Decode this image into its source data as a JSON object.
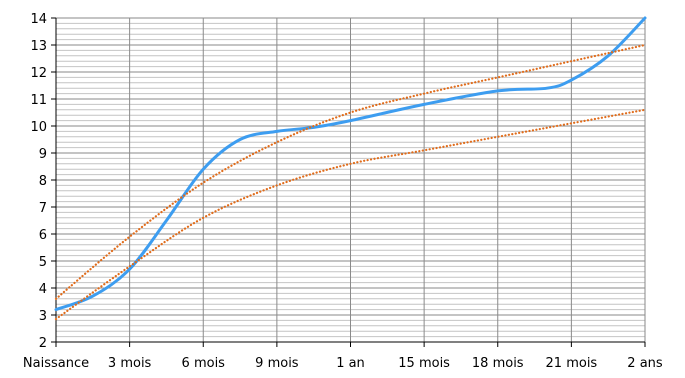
{
  "chart_data": {
    "type": "line",
    "title": "",
    "xlabel": "",
    "ylabel": "",
    "categories": [
      "Naissance",
      "3 mois",
      "6 mois",
      "9 mois",
      "1 an",
      "15 mois",
      "18 mois",
      "21 mois",
      "2 ans"
    ],
    "x_months": [
      0,
      3,
      6,
      9,
      12,
      15,
      18,
      21,
      24
    ],
    "xlim": [
      0,
      24
    ],
    "ylim": [
      2,
      14
    ],
    "y_ticks": [
      2,
      3,
      4,
      5,
      6,
      7,
      8,
      9,
      10,
      11,
      12,
      13,
      14
    ],
    "grid": true,
    "minor_y_step": 0.2,
    "series": [
      {
        "style": "solid",
        "color": "#3d9df0",
        "points": [
          [
            0,
            3.2
          ],
          [
            1.5,
            3.7
          ],
          [
            3,
            4.7
          ],
          [
            4.5,
            6.5
          ],
          [
            6,
            8.4
          ],
          [
            7.5,
            9.5
          ],
          [
            9,
            9.8
          ],
          [
            10.5,
            9.95
          ],
          [
            12,
            10.2
          ],
          [
            15,
            10.8
          ],
          [
            18,
            11.3
          ],
          [
            20,
            11.4
          ],
          [
            21,
            11.7
          ],
          [
            22.5,
            12.6
          ],
          [
            24,
            14.0
          ]
        ]
      },
      {
        "style": "dotted",
        "color": "#e06c1b",
        "points": [
          [
            0,
            3.6
          ],
          [
            3,
            5.9
          ],
          [
            6,
            7.9
          ],
          [
            9,
            9.4
          ],
          [
            12,
            10.5
          ],
          [
            15,
            11.2
          ],
          [
            18,
            11.8
          ],
          [
            21,
            12.4
          ],
          [
            24,
            13.0
          ]
        ]
      },
      {
        "style": "dotted",
        "color": "#e06c1b",
        "points": [
          [
            0,
            2.85
          ],
          [
            3,
            4.8
          ],
          [
            6,
            6.6
          ],
          [
            9,
            7.8
          ],
          [
            12,
            8.6
          ],
          [
            15,
            9.1
          ],
          [
            18,
            9.6
          ],
          [
            21,
            10.1
          ],
          [
            24,
            10.6
          ]
        ]
      }
    ]
  }
}
